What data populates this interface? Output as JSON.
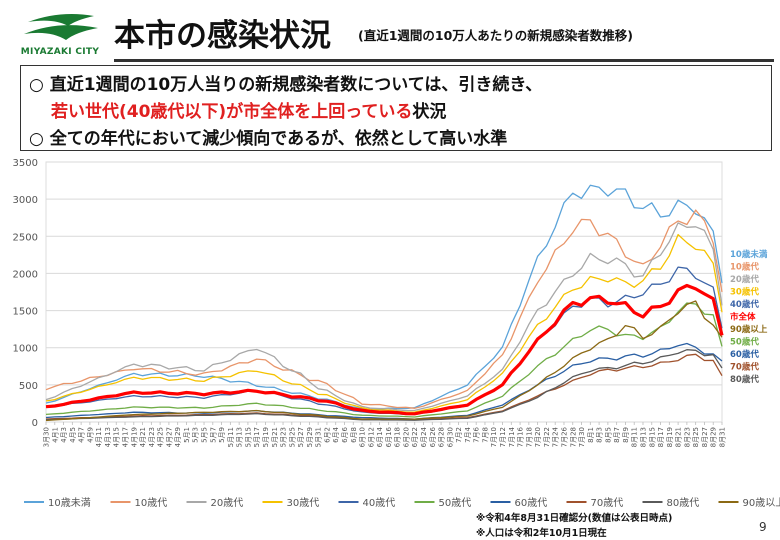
{
  "header": {
    "logo_text": "MIYAZAKI CITY",
    "title": "本市の感染状況",
    "subtitle": "(直近1週間の10万人あたりの新規感染者数推移)"
  },
  "callout": {
    "line1": "○ 直近1週間の10万人当りの新規感染者数については、引き続き、",
    "line2_highlight": "若い世代(40歳代以下)が市全体を上回っている",
    "line2_rest": "状況",
    "line3": "○ 全ての年代において減少傾向であるが、依然として高い水準"
  },
  "notes": {
    "note1": "※令和4年8月31日確認分(数値は公表日時点)",
    "note2": "※人口は令和2年10月1日現在"
  },
  "page_number": "9",
  "chart_data": {
    "type": "line",
    "title": "",
    "xlabel": "",
    "ylabel": "",
    "ylim": [
      0,
      3500
    ],
    "yticks": [
      0,
      500,
      1000,
      1500,
      2000,
      2500,
      3000,
      3500
    ],
    "grid": true,
    "legend_position": "bottom",
    "x_start": "3月30日",
    "x_end": "8月31日",
    "x_tick_labels": [
      "3月30",
      "4月1",
      "4月3",
      "4月5",
      "4月7",
      "4月9",
      "4月11",
      "4月13",
      "4月15",
      "4月17",
      "4月19",
      "4月21",
      "4月23",
      "4月25",
      "4月27",
      "4月29",
      "5月1",
      "5月3",
      "5月5",
      "5月7",
      "5月9",
      "5月11",
      "5月13",
      "5月15",
      "5月17",
      "5月19",
      "5月21",
      "5月23",
      "5月25",
      "5月27",
      "5月29",
      "5月31",
      "6月2",
      "6月4",
      "6月6",
      "6月8",
      "6月10",
      "6月12",
      "6月14",
      "6月16",
      "6月18",
      "6月20",
      "6月22",
      "6月24",
      "6月26",
      "6月28",
      "6月30",
      "7月2",
      "7月4",
      "7月6",
      "7月8",
      "7月10",
      "7月12",
      "7月14",
      "7月16",
      "7月18",
      "7月20",
      "7月22",
      "7月24",
      "7月26",
      "7月28",
      "7月30",
      "8月1",
      "8月3",
      "8月5",
      "8月7",
      "8月9",
      "8月11",
      "8月13",
      "8月15",
      "8月17",
      "8月19",
      "8月21",
      "8月23",
      "8月25",
      "8月27",
      "8月29",
      "8月31"
    ],
    "keypoints": [
      0,
      10,
      18,
      24,
      32,
      36,
      42,
      48,
      52,
      56,
      60,
      62,
      64,
      66,
      68,
      70,
      72,
      74,
      76,
      77
    ],
    "series": [
      {
        "name": "10歳未満",
        "color": "#5ba3d9",
        "width": 1.3,
        "values": [
          250,
          650,
          620,
          500,
          300,
          170,
          190,
          500,
          1000,
          2200,
          3100,
          3100,
          3150,
          3050,
          2900,
          2800,
          2900,
          2900,
          2500,
          1950
        ]
      },
      {
        "name": "10歳代",
        "color": "#e8956a",
        "width": 1.3,
        "values": [
          450,
          720,
          640,
          850,
          500,
          250,
          180,
          420,
          900,
          1900,
          2600,
          2700,
          2500,
          2300,
          2050,
          2400,
          2700,
          2800,
          2500,
          1750
        ]
      },
      {
        "name": "20歳代",
        "color": "#a8a8a8",
        "width": 1.3,
        "values": [
          300,
          780,
          700,
          1000,
          400,
          200,
          150,
          350,
          700,
          1500,
          2000,
          2200,
          2200,
          2100,
          1950,
          2300,
          2600,
          2700,
          2300,
          1650
        ]
      },
      {
        "name": "30歳代",
        "color": "#f5c200",
        "width": 1.3,
        "values": [
          280,
          600,
          560,
          700,
          350,
          180,
          130,
          300,
          650,
          1300,
          1800,
          1900,
          1950,
          1850,
          1900,
          2100,
          2450,
          2400,
          2100,
          1550
        ]
      },
      {
        "name": "40歳代",
        "color": "#3d65a8",
        "width": 1.3,
        "values": [
          200,
          350,
          330,
          420,
          230,
          130,
          100,
          220,
          500,
          1100,
          1550,
          1650,
          1600,
          1650,
          1750,
          1850,
          2050,
          2000,
          1750,
          1300
        ]
      },
      {
        "name": "50歳代",
        "color": "#70ad47",
        "width": 1.3,
        "values": [
          100,
          200,
          190,
          250,
          150,
          90,
          70,
          150,
          350,
          750,
          1100,
          1250,
          1250,
          1150,
          1150,
          1250,
          1500,
          1600,
          1400,
          1000
        ]
      },
      {
        "name": "60歳代",
        "color": "#2a5fa3",
        "width": 1.3,
        "values": [
          60,
          130,
          120,
          150,
          90,
          60,
          40,
          90,
          230,
          500,
          750,
          830,
          850,
          880,
          900,
          950,
          1050,
          1000,
          900,
          800
        ]
      },
      {
        "name": "70歳代",
        "color": "#a0522d",
        "width": 1.3,
        "values": [
          40,
          80,
          100,
          120,
          70,
          40,
          30,
          60,
          150,
          350,
          550,
          650,
          700,
          720,
          750,
          780,
          850,
          900,
          820,
          600
        ]
      },
      {
        "name": "80歳代",
        "color": "#5a5a5a",
        "width": 1.3,
        "values": [
          30,
          70,
          90,
          110,
          60,
          30,
          25,
          50,
          140,
          330,
          600,
          700,
          720,
          760,
          800,
          850,
          950,
          950,
          900,
          700
        ]
      },
      {
        "name": "90歳以上",
        "color": "#8b6914",
        "width": 1.3,
        "values": [
          20,
          100,
          130,
          150,
          80,
          40,
          40,
          80,
          200,
          500,
          850,
          1000,
          1100,
          1300,
          1150,
          1250,
          1500,
          1600,
          1300,
          1100
        ]
      },
      {
        "name": "市全体",
        "color": "#ff0000",
        "width": 3.2,
        "values": [
          200,
          400,
          380,
          420,
          280,
          150,
          110,
          230,
          500,
          1100,
          1600,
          1650,
          1650,
          1550,
          1450,
          1550,
          1750,
          1850,
          1600,
          1200
        ]
      }
    ]
  }
}
